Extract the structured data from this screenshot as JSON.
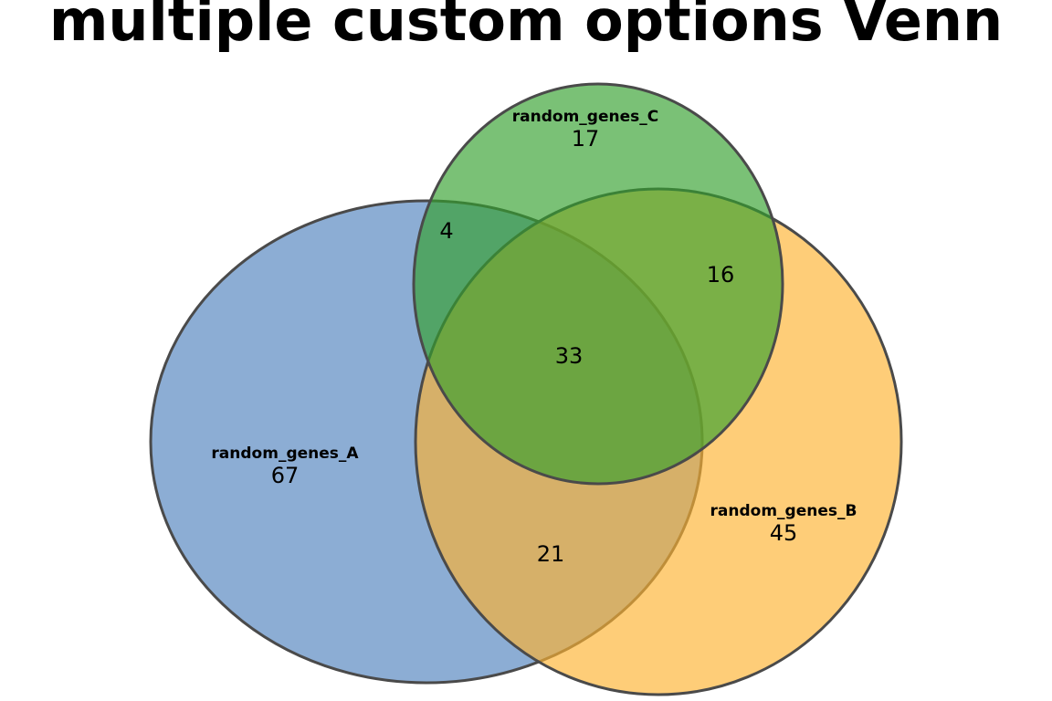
{
  "title": "multiple custom options Venn",
  "sets": {
    "a": {
      "name": "random_genes_A",
      "color": "#4f81bd",
      "only": "67"
    },
    "b": {
      "name": "random_genes_B",
      "color": "#fdb22f",
      "only": "45"
    },
    "c": {
      "name": "random_genes_C",
      "color": "#33a02c",
      "only": "17"
    }
  },
  "intersections": {
    "ab": "21",
    "ac": "4",
    "bc": "16",
    "abc": "33"
  },
  "style": {
    "outline_color": "#4a4a4a",
    "fill_opacity": 0.65
  }
}
